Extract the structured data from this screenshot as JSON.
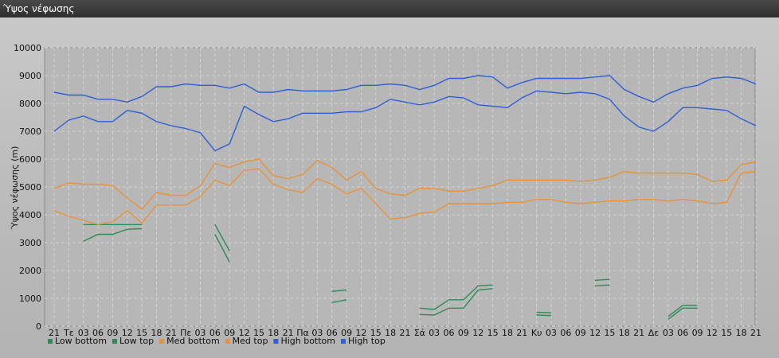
{
  "window": {
    "title": "Ύψος νέφωσης"
  },
  "chart_data": {
    "type": "line",
    "title": "",
    "ylabel": "Ύψος νέφωσης (m)",
    "ylim": [
      0,
      10000
    ],
    "yticks": [
      0,
      1000,
      2000,
      3000,
      4000,
      5000,
      6000,
      7000,
      8000,
      9000,
      10000
    ],
    "grid": true,
    "legend_position": "bottom-left",
    "categories": [
      "21",
      "Τε",
      "03",
      "06",
      "09",
      "12",
      "15",
      "18",
      "21",
      "Πε",
      "03",
      "06",
      "09",
      "12",
      "15",
      "18",
      "21",
      "Πα",
      "03",
      "06",
      "09",
      "12",
      "15",
      "18",
      "21",
      "Σά",
      "03",
      "06",
      "09",
      "12",
      "15",
      "18",
      "21",
      "Κυ",
      "03",
      "06",
      "09",
      "12",
      "15",
      "18",
      "21",
      "Δε",
      "03",
      "06",
      "09",
      "12",
      "15",
      "18",
      "21"
    ],
    "series": [
      {
        "name": "Low bottom",
        "color": "#2e8b57",
        "values": [
          null,
          null,
          3050,
          3300,
          3300,
          3480,
          3500,
          null,
          null,
          null,
          null,
          3300,
          2300,
          null,
          null,
          null,
          null,
          null,
          null,
          850,
          950,
          null,
          null,
          null,
          null,
          420,
          400,
          650,
          650,
          1300,
          1350,
          null,
          null,
          400,
          380,
          null,
          null,
          1450,
          1480,
          null,
          null,
          null,
          250,
          650,
          650,
          null,
          null,
          null,
          null
        ]
      },
      {
        "name": "Low top",
        "color": "#2e8b57",
        "values": [
          null,
          null,
          3650,
          3650,
          3650,
          3650,
          3650,
          null,
          null,
          null,
          null,
          3650,
          2700,
          null,
          null,
          null,
          null,
          null,
          null,
          1250,
          1300,
          null,
          null,
          null,
          null,
          650,
          600,
          950,
          950,
          1450,
          1480,
          null,
          null,
          500,
          480,
          null,
          null,
          1650,
          1680,
          null,
          null,
          null,
          350,
          750,
          750,
          null,
          null,
          null,
          null
        ]
      },
      {
        "name": "Med bottom",
        "color": "#e8923a",
        "values": [
          4150,
          3950,
          3800,
          3650,
          3750,
          4150,
          3700,
          4350,
          4350,
          4350,
          4650,
          5250,
          5050,
          5600,
          5650,
          5100,
          4900,
          4800,
          5300,
          5100,
          4750,
          4950,
          4400,
          3850,
          3900,
          4050,
          4100,
          4400,
          4400,
          4400,
          4400,
          4450,
          4450,
          4550,
          4550,
          4450,
          4400,
          4450,
          4500,
          4500,
          4550,
          4550,
          4500,
          4550,
          4500,
          4400,
          4450,
          5500,
          5550
        ]
      },
      {
        "name": "Med top",
        "color": "#e8923a",
        "values": [
          4950,
          5150,
          5100,
          5100,
          5050,
          4600,
          4200,
          4800,
          4700,
          4700,
          5050,
          5850,
          5700,
          5900,
          6000,
          5400,
          5300,
          5450,
          5950,
          5700,
          5250,
          5550,
          4950,
          4750,
          4700,
          4950,
          4950,
          4850,
          4850,
          4950,
          5050,
          5250,
          5250,
          5250,
          5250,
          5250,
          5200,
          5250,
          5350,
          5550,
          5500,
          5500,
          5500,
          5500,
          5450,
          5200,
          5250,
          5800,
          5900
        ]
      },
      {
        "name": "High bottom",
        "color": "#2f5fd6",
        "values": [
          7000,
          7400,
          7550,
          7350,
          7350,
          7750,
          7650,
          7350,
          7200,
          7100,
          6950,
          6300,
          6550,
          7900,
          7600,
          7350,
          7450,
          7650,
          7650,
          7650,
          7700,
          7700,
          7850,
          8150,
          8050,
          7950,
          8050,
          8250,
          8200,
          7950,
          7900,
          7850,
          8200,
          8450,
          8400,
          8350,
          8400,
          8350,
          8150,
          7550,
          7150,
          7000,
          7350,
          7850,
          7850,
          7800,
          7750,
          7450,
          7200
        ]
      },
      {
        "name": "High top",
        "color": "#2f5fd6",
        "values": [
          8400,
          8300,
          8300,
          8150,
          8150,
          8050,
          8250,
          8600,
          8600,
          8700,
          8650,
          8650,
          8550,
          8700,
          8400,
          8400,
          8500,
          8450,
          8450,
          8450,
          8500,
          8650,
          8650,
          8700,
          8650,
          8500,
          8650,
          8900,
          8900,
          9000,
          8950,
          8550,
          8750,
          8900,
          8900,
          8900,
          8900,
          8950,
          9000,
          8500,
          8250,
          8050,
          8350,
          8550,
          8650,
          8900,
          8950,
          8900,
          8700
        ]
      }
    ],
    "legend": [
      {
        "label": "Low bottom",
        "color": "#2e8b57"
      },
      {
        "label": "Low top",
        "color": "#2e8b57"
      },
      {
        "label": "Med bottom",
        "color": "#e8923a"
      },
      {
        "label": "Med top",
        "color": "#e8923a"
      },
      {
        "label": "High bottom",
        "color": "#2f5fd6"
      },
      {
        "label": "High top",
        "color": "#2f5fd6"
      }
    ]
  }
}
